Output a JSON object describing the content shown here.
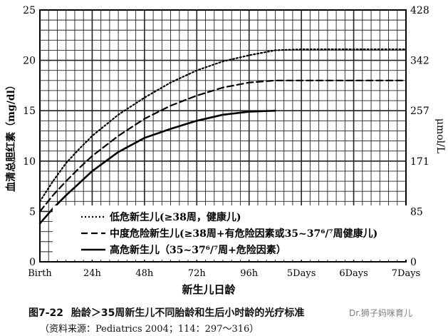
{
  "chart_data": {
    "type": "line",
    "ylabel": "血清总胆红素（mg/dl）",
    "y2label": "μmol/L",
    "xlabel": "新生儿日龄",
    "x_categories": [
      "Birth",
      "24h",
      "48h",
      "72h",
      "96h",
      "5Days",
      "6Days",
      "7Days"
    ],
    "y_ticks": [
      0,
      5,
      10,
      15,
      20,
      25
    ],
    "y2_ticks": [
      0,
      85,
      171,
      257,
      342,
      428
    ],
    "ylim": [
      0,
      25
    ],
    "grid": true,
    "legend_position": "inside-bottom-right",
    "series": [
      {
        "name": "低危新生儿(≥38周，健康儿)",
        "style": "dotted",
        "x": [
          0,
          6,
          12,
          18,
          24,
          36,
          48,
          60,
          72,
          84,
          96,
          108,
          120,
          168
        ],
        "y": [
          6.0,
          8.0,
          9.8,
          11.2,
          12.5,
          14.6,
          16.3,
          17.8,
          19.0,
          19.9,
          20.5,
          21.0,
          21.1,
          21.1
        ]
      },
      {
        "name": "中度危险新生儿(≥38周+有危险因素或35~37⁶/⁷周健康儿)",
        "style": "dashed",
        "x": [
          0,
          6,
          12,
          18,
          24,
          36,
          48,
          60,
          72,
          84,
          96,
          108,
          120,
          168
        ],
        "y": [
          5.0,
          6.6,
          8.0,
          9.3,
          10.5,
          12.5,
          14.2,
          15.5,
          16.5,
          17.3,
          17.8,
          18.0,
          18.0,
          18.0
        ]
      },
      {
        "name": "高危新生儿（35~37⁶/⁷周+危险因素）",
        "style": "solid",
        "x": [
          0,
          6,
          12,
          18,
          24,
          36,
          48,
          60,
          72,
          84,
          96,
          108
        ],
        "y": [
          3.8,
          5.3,
          6.6,
          7.8,
          9.0,
          10.9,
          12.3,
          13.2,
          14.0,
          14.6,
          14.9,
          15.0
        ]
      }
    ]
  },
  "caption": {
    "fig_no": "图7-22",
    "title": "胎龄＞35周新生儿不同胎龄和生后小时龄的光疗标准",
    "source": "（资料来源：Pediatrics 2004；114：297～316）"
  },
  "watermark": "Dr.狮子妈咪育儿"
}
